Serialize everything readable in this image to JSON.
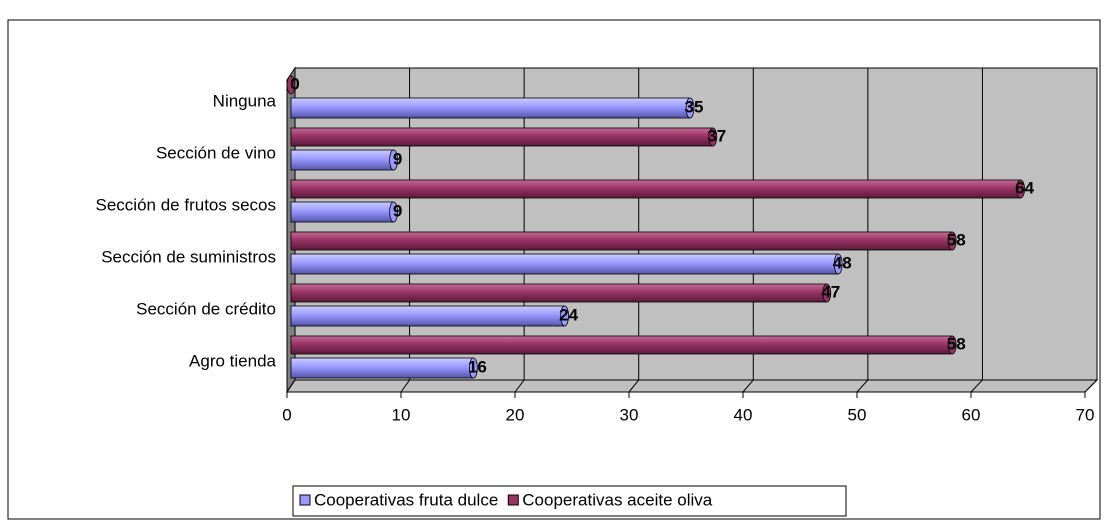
{
  "chart_data": {
    "type": "bar",
    "orientation": "horizontal",
    "categories": [
      "Agro tienda",
      "Sección de crédito",
      "Sección de suministros",
      "Sección de frutos secos",
      "Sección de vino",
      "Ninguna"
    ],
    "series": [
      {
        "name": "Cooperativas fruta dulce",
        "color": "#9999ff",
        "values": [
          16,
          24,
          48,
          9,
          9,
          35
        ]
      },
      {
        "name": "Cooperativas aceite oliva",
        "color": "#993366",
        "values": [
          58,
          47,
          58,
          64,
          37,
          0
        ]
      }
    ],
    "xlim": [
      0,
      70
    ],
    "xticks": [
      0,
      10,
      20,
      30,
      40,
      50,
      60,
      70
    ],
    "grid": true,
    "legend": "bottom"
  }
}
